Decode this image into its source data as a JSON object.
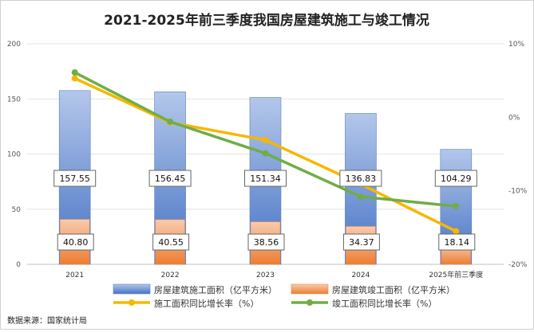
{
  "chart_data": {
    "type": "bar+line",
    "title": "2021-2025年前三季度我国房屋建筑施工与竣工情况",
    "categories": [
      "2021",
      "2022",
      "2023",
      "2024",
      "2025年前三季度"
    ],
    "left_axis": {
      "min": 0,
      "max": 200,
      "ticks": [
        "0",
        "50",
        "100",
        "150",
        "200"
      ]
    },
    "right_axis": {
      "min": -20,
      "max": 10,
      "ticks": [
        "-20%",
        "-10%",
        "0%",
        "10%"
      ]
    },
    "series": [
      {
        "name": "房屋建筑施工面积（亿平方米）",
        "kind": "bar",
        "axis": "left",
        "values": [
          157.55,
          156.45,
          151.34,
          136.83,
          104.29
        ],
        "labels": [
          "157.55",
          "156.45",
          "151.34",
          "136.83",
          "104.29"
        ]
      },
      {
        "name": "房屋建筑竣工面积（亿平方米）",
        "kind": "bar",
        "axis": "left",
        "values": [
          40.8,
          40.55,
          38.56,
          34.37,
          18.14
        ],
        "labels": [
          "40.80",
          "40.55",
          "38.56",
          "34.37",
          "18.14"
        ]
      },
      {
        "name": "施工面积同比增长率（%）",
        "kind": "line",
        "axis": "right",
        "values": [
          5.3,
          -0.7,
          -3.1,
          -9.1,
          -15.5
        ]
      },
      {
        "name": "竣工面积同比增长率（%）",
        "kind": "line",
        "axis": "right",
        "values": [
          6.1,
          -0.6,
          -4.9,
          -10.8,
          -12.1
        ]
      }
    ],
    "colors": {
      "bar1_top": "#b4c7ea",
      "bar1_bottom": "#4472c4",
      "bar2_top": "#f8cbad",
      "bar2_bottom": "#ed7d31",
      "line1": "#f5b800",
      "line2": "#70ad47"
    }
  },
  "source": "数据来源：国家统计局"
}
